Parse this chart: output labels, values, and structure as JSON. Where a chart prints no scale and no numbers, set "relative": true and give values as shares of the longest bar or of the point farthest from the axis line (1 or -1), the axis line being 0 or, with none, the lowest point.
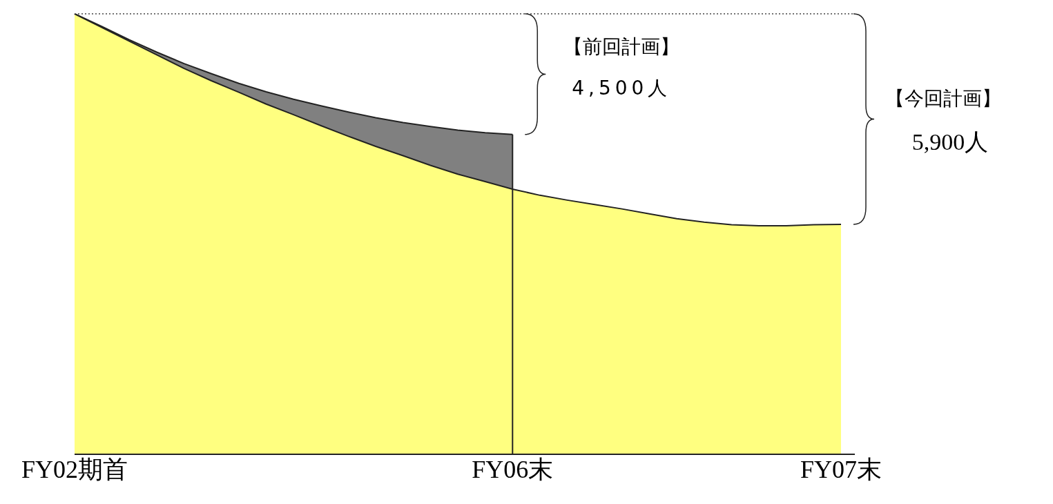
{
  "chart_data": {
    "type": "area",
    "relative": true,
    "categories": [
      "FY02期首",
      null,
      null,
      null,
      null,
      null,
      null,
      null,
      null,
      null,
      null,
      null,
      null,
      null,
      null,
      null,
      "FY06末",
      null,
      null,
      null,
      null,
      null,
      null,
      null,
      null,
      null,
      null,
      null,
      "FY07末"
    ],
    "series": [
      {
        "color": "#808080",
        "values": [
          1.0,
          0.971,
          0.941,
          0.913,
          0.887,
          0.864,
          0.842,
          0.823,
          0.806,
          0.791,
          0.777,
          0.764,
          0.753,
          0.744,
          0.736,
          0.73,
          0.726,
          null,
          null,
          null,
          null,
          null,
          null,
          null,
          null,
          null,
          null,
          null,
          null
        ]
      },
      {
        "color": "#ffff80",
        "values": [
          1.0,
          0.969,
          0.938,
          0.907,
          0.876,
          0.848,
          0.822,
          0.795,
          0.771,
          0.746,
          0.722,
          0.699,
          0.678,
          0.656,
          0.636,
          0.619,
          0.602,
          0.588,
          0.577,
          0.567,
          0.557,
          0.546,
          0.535,
          0.527,
          0.521,
          0.519,
          0.519,
          0.521,
          0.522
        ]
      }
    ],
    "ref_lines": [
      {
        "axis": "y",
        "value": 1,
        "line_style": "dotted"
      },
      {
        "axis": "x",
        "value": "FY06末"
      }
    ],
    "annotations": [
      "【前回計画】",
      "4,500人",
      "【今回計画】",
      "5,900人"
    ]
  }
}
